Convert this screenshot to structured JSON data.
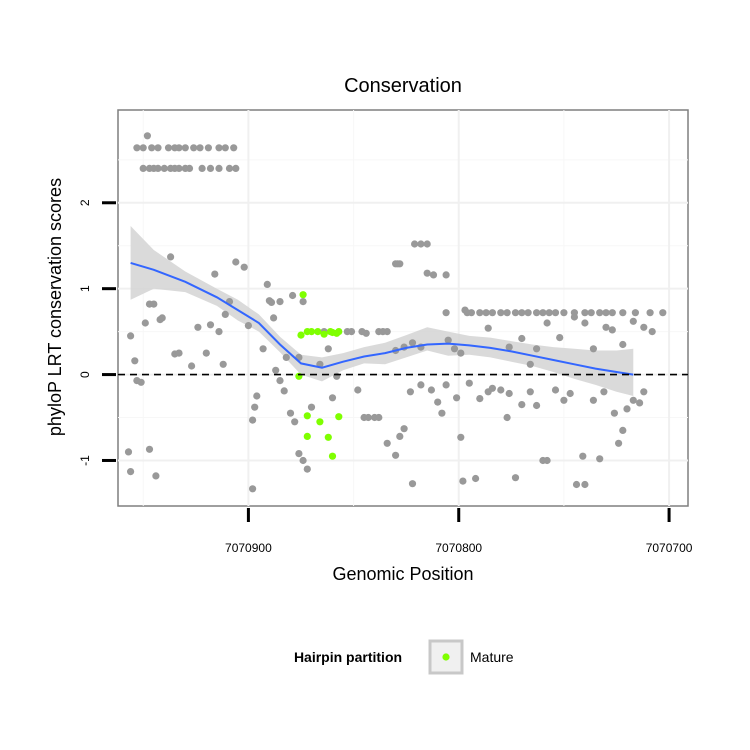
{
  "chart_data": {
    "type": "scatter",
    "title": "Conservation",
    "xlabel": "Genomic Position",
    "ylabel": "phyloP LRT conservation scores",
    "x_reversed": true,
    "xlim": [
      7070962,
      7070691
    ],
    "ylim": [
      -1.53,
      3.08
    ],
    "x_ticks": [
      {
        "value": 7070900,
        "label": "7070900"
      },
      {
        "value": 7070800,
        "label": "7070800"
      },
      {
        "value": 7070700,
        "label": "7070700"
      }
    ],
    "y_ticks": [
      {
        "value": -1,
        "label": "-1"
      },
      {
        "value": 0,
        "label": "0"
      },
      {
        "value": 1,
        "label": "1"
      },
      {
        "value": 2,
        "label": "2"
      }
    ],
    "reference_line": {
      "y": 0,
      "style": "dashed"
    },
    "colors": {
      "other": "#999999",
      "mature": "#7fff00",
      "smooth": "#3366ff",
      "band": "#d3d3d3"
    },
    "legend": {
      "title": "Hairpin partition",
      "entries": [
        {
          "label": "Mature",
          "color": "#7fff00"
        }
      ],
      "position": "bottom"
    },
    "series": [
      {
        "name": "Other",
        "points": [
          [
            7070948,
            2.78
          ],
          [
            7070953,
            2.64
          ],
          [
            7070950,
            2.64
          ],
          [
            7070946,
            2.64
          ],
          [
            7070943,
            2.64
          ],
          [
            7070938,
            2.64
          ],
          [
            7070935,
            2.64
          ],
          [
            7070933,
            2.64
          ],
          [
            7070930,
            2.64
          ],
          [
            7070926,
            2.64
          ],
          [
            7070923,
            2.64
          ],
          [
            7070919,
            2.64
          ],
          [
            7070914,
            2.64
          ],
          [
            7070911,
            2.64
          ],
          [
            7070907,
            2.64
          ],
          [
            7070950,
            2.4
          ],
          [
            7070947,
            2.4
          ],
          [
            7070945,
            2.4
          ],
          [
            7070943,
            2.4
          ],
          [
            7070940,
            2.4
          ],
          [
            7070937,
            2.4
          ],
          [
            7070935,
            2.4
          ],
          [
            7070933,
            2.4
          ],
          [
            7070930,
            2.4
          ],
          [
            7070928,
            2.4
          ],
          [
            7070922,
            2.4
          ],
          [
            7070918,
            2.4
          ],
          [
            7070914,
            2.4
          ],
          [
            7070909,
            2.4
          ],
          [
            7070906,
            2.4
          ],
          [
            7070956,
            0.45
          ],
          [
            7070954,
            0.16
          ],
          [
            7070953,
            -0.07
          ],
          [
            7070951,
            -0.09
          ],
          [
            7070957,
            -0.9
          ],
          [
            7070956,
            -1.13
          ],
          [
            7070947,
            -0.87
          ],
          [
            7070944,
            -1.18
          ],
          [
            7070949,
            0.6
          ],
          [
            7070947,
            0.82
          ],
          [
            7070945,
            0.82
          ],
          [
            7070942,
            0.64
          ],
          [
            7070941,
            0.66
          ],
          [
            7070937,
            1.37
          ],
          [
            7070935,
            0.24
          ],
          [
            7070933,
            0.25
          ],
          [
            7070927,
            0.1
          ],
          [
            7070924,
            0.55
          ],
          [
            7070920,
            0.25
          ],
          [
            7070918,
            0.58
          ],
          [
            7070916,
            1.17
          ],
          [
            7070914,
            0.5
          ],
          [
            7070912,
            0.12
          ],
          [
            7070911,
            0.7
          ],
          [
            7070909,
            0.85
          ],
          [
            7070906,
            1.31
          ],
          [
            7070902,
            1.25
          ],
          [
            7070900,
            0.57
          ],
          [
            7070898,
            -0.53
          ],
          [
            7070897,
            -0.38
          ],
          [
            7070896,
            -0.25
          ],
          [
            7070893,
            0.3
          ],
          [
            7070890,
            0.86
          ],
          [
            7070889,
            0.84
          ],
          [
            7070887,
            0.05
          ],
          [
            7070885,
            -0.07
          ],
          [
            7070883,
            -0.19
          ],
          [
            7070880,
            -0.45
          ],
          [
            7070878,
            -0.55
          ],
          [
            7070876,
            -0.92
          ],
          [
            7070874,
            -1.0
          ],
          [
            7070872,
            -1.1
          ],
          [
            7070870,
            -0.38
          ],
          [
            7070866,
            0.12
          ],
          [
            7070864,
            0.5
          ],
          [
            7070862,
            0.3
          ],
          [
            7070860,
            -0.27
          ],
          [
            7070858,
            -0.02
          ],
          [
            7070898,
            -1.33
          ],
          [
            7070891,
            1.05
          ],
          [
            7070888,
            0.66
          ],
          [
            7070885,
            0.85
          ],
          [
            7070882,
            0.2
          ],
          [
            7070879,
            0.92
          ],
          [
            7070876,
            0.2
          ],
          [
            7070874,
            0.85
          ],
          [
            7070828,
            1.29
          ],
          [
            7070829,
            1.29
          ],
          [
            7070830,
            1.29
          ],
          [
            7070821,
            1.52
          ],
          [
            7070818,
            1.52
          ],
          [
            7070815,
            1.52
          ],
          [
            7070815,
            1.18
          ],
          [
            7070812,
            1.16
          ],
          [
            7070806,
            1.16
          ],
          [
            7070797,
            0.75
          ],
          [
            7070794,
            0.72
          ],
          [
            7070790,
            0.72
          ],
          [
            7070787,
            0.72
          ],
          [
            7070784,
            0.72
          ],
          [
            7070780,
            0.72
          ],
          [
            7070777,
            0.72
          ],
          [
            7070773,
            0.72
          ],
          [
            7070770,
            0.72
          ],
          [
            7070767,
            0.72
          ],
          [
            7070763,
            0.72
          ],
          [
            7070760,
            0.72
          ],
          [
            7070757,
            0.72
          ],
          [
            7070754,
            0.72
          ],
          [
            7070750,
            0.72
          ],
          [
            7070745,
            0.72
          ],
          [
            7070740,
            0.72
          ],
          [
            7070737,
            0.72
          ],
          [
            7070733,
            0.72
          ],
          [
            7070730,
            0.72
          ],
          [
            7070727,
            0.72
          ],
          [
            7070722,
            0.72
          ],
          [
            7070716,
            0.72
          ],
          [
            7070709,
            0.72
          ],
          [
            7070703,
            0.72
          ],
          [
            7070853,
            0.5
          ],
          [
            7070851,
            0.5
          ],
          [
            7070846,
            0.5
          ],
          [
            7070844,
            0.48
          ],
          [
            7070838,
            0.5
          ],
          [
            7070836,
            0.5
          ],
          [
            7070834,
            0.5
          ],
          [
            7070830,
            0.28
          ],
          [
            7070826,
            0.32
          ],
          [
            7070822,
            0.37
          ],
          [
            7070818,
            0.32
          ],
          [
            7070806,
            0.72
          ],
          [
            7070805,
            0.4
          ],
          [
            7070802,
            0.3
          ],
          [
            7070799,
            0.25
          ],
          [
            7070796,
            0.72
          ],
          [
            7070786,
            0.54
          ],
          [
            7070776,
            0.32
          ],
          [
            7070770,
            0.42
          ],
          [
            7070766,
            0.12
          ],
          [
            7070763,
            0.3
          ],
          [
            7070758,
            0.6
          ],
          [
            7070752,
            0.43
          ],
          [
            7070745,
            0.67
          ],
          [
            7070740,
            0.6
          ],
          [
            7070736,
            0.3
          ],
          [
            7070730,
            0.55
          ],
          [
            7070727,
            0.52
          ],
          [
            7070722,
            0.35
          ],
          [
            7070717,
            0.62
          ],
          [
            7070712,
            0.55
          ],
          [
            7070708,
            0.5
          ],
          [
            7070848,
            -0.18
          ],
          [
            7070845,
            -0.5
          ],
          [
            7070843,
            -0.5
          ],
          [
            7070840,
            -0.5
          ],
          [
            7070838,
            -0.5
          ],
          [
            7070834,
            -0.8
          ],
          [
            7070830,
            -0.94
          ],
          [
            7070828,
            -0.72
          ],
          [
            7070826,
            -0.63
          ],
          [
            7070823,
            -0.2
          ],
          [
            7070822,
            -1.27
          ],
          [
            7070818,
            -0.12
          ],
          [
            7070813,
            -0.18
          ],
          [
            7070810,
            -0.32
          ],
          [
            7070808,
            -0.45
          ],
          [
            7070806,
            -0.12
          ],
          [
            7070801,
            -0.27
          ],
          [
            7070799,
            -0.73
          ],
          [
            7070798,
            -1.24
          ],
          [
            7070795,
            -0.1
          ],
          [
            7070792,
            -1.21
          ],
          [
            7070790,
            -0.28
          ],
          [
            7070786,
            -0.2
          ],
          [
            7070784,
            -0.16
          ],
          [
            7070780,
            -0.18
          ],
          [
            7070777,
            -0.5
          ],
          [
            7070776,
            -0.22
          ],
          [
            7070773,
            -1.2
          ],
          [
            7070770,
            -0.35
          ],
          [
            7070766,
            -0.2
          ],
          [
            7070763,
            -0.36
          ],
          [
            7070760,
            -1.0
          ],
          [
            7070758,
            -1.0
          ],
          [
            7070754,
            -0.18
          ],
          [
            7070750,
            -0.3
          ],
          [
            7070747,
            -0.22
          ],
          [
            7070744,
            -1.28
          ],
          [
            7070741,
            -0.95
          ],
          [
            7070740,
            -1.28
          ],
          [
            7070736,
            -0.3
          ],
          [
            7070733,
            -0.98
          ],
          [
            7070731,
            -0.2
          ],
          [
            7070726,
            -0.45
          ],
          [
            7070724,
            -0.8
          ],
          [
            7070722,
            -0.65
          ],
          [
            7070720,
            -0.4
          ],
          [
            7070717,
            -0.3
          ],
          [
            7070714,
            -0.33
          ],
          [
            7070712,
            -0.2
          ]
        ]
      },
      {
        "name": "Mature",
        "points": [
          [
            7070874,
            0.93
          ],
          [
            7070875,
            0.46
          ],
          [
            7070872,
            0.5
          ],
          [
            7070870,
            0.5
          ],
          [
            7070867,
            0.5
          ],
          [
            7070864,
            0.47
          ],
          [
            7070861,
            0.5
          ],
          [
            7070860,
            0.49
          ],
          [
            7070858,
            0.48
          ],
          [
            7070857,
            0.5
          ],
          [
            7070876,
            -0.02
          ],
          [
            7070872,
            -0.48
          ],
          [
            7070872,
            -0.72
          ],
          [
            7070866,
            -0.55
          ],
          [
            7070862,
            -0.73
          ],
          [
            7070860,
            -0.95
          ],
          [
            7070857,
            -0.49
          ]
        ]
      }
    ],
    "smooth_line": [
      [
        7070956,
        1.3
      ],
      [
        7070945,
        1.22
      ],
      [
        7070930,
        1.08
      ],
      [
        7070915,
        0.9
      ],
      [
        7070905,
        0.75
      ],
      [
        7070895,
        0.6
      ],
      [
        7070885,
        0.35
      ],
      [
        7070875,
        0.13
      ],
      [
        7070865,
        0.08
      ],
      [
        7070855,
        0.15
      ],
      [
        7070845,
        0.21
      ],
      [
        7070835,
        0.25
      ],
      [
        7070825,
        0.31
      ],
      [
        7070815,
        0.35
      ],
      [
        7070805,
        0.36
      ],
      [
        7070795,
        0.34
      ],
      [
        7070785,
        0.31
      ],
      [
        7070775,
        0.27
      ],
      [
        7070765,
        0.22
      ],
      [
        7070755,
        0.17
      ],
      [
        7070745,
        0.12
      ],
      [
        7070735,
        0.07
      ],
      [
        7070725,
        0.03
      ],
      [
        7070717,
        0.0
      ]
    ],
    "confidence_band": [
      [
        7070956,
        1.73,
        0.87
      ],
      [
        7070945,
        1.45,
        1.0
      ],
      [
        7070930,
        1.2,
        0.96
      ],
      [
        7070915,
        1.0,
        0.8
      ],
      [
        7070905,
        0.87,
        0.63
      ],
      [
        7070895,
        0.7,
        0.5
      ],
      [
        7070885,
        0.44,
        0.26
      ],
      [
        7070875,
        0.23,
        0.0
      ],
      [
        7070865,
        0.2,
        -0.08
      ],
      [
        7070855,
        0.25,
        0.05
      ],
      [
        7070845,
        0.32,
        0.13
      ],
      [
        7070835,
        0.37,
        0.12
      ],
      [
        7070825,
        0.46,
        0.2
      ],
      [
        7070815,
        0.55,
        0.28
      ],
      [
        7070805,
        0.5,
        0.22
      ],
      [
        7070795,
        0.45,
        0.23
      ],
      [
        7070785,
        0.43,
        0.2
      ],
      [
        7070775,
        0.39,
        0.15
      ],
      [
        7070765,
        0.35,
        0.1
      ],
      [
        7070755,
        0.32,
        0.03
      ],
      [
        7070745,
        0.3,
        -0.05
      ],
      [
        7070735,
        0.28,
        -0.12
      ],
      [
        7070725,
        0.28,
        -0.2
      ],
      [
        7070717,
        0.3,
        -0.25
      ]
    ]
  }
}
